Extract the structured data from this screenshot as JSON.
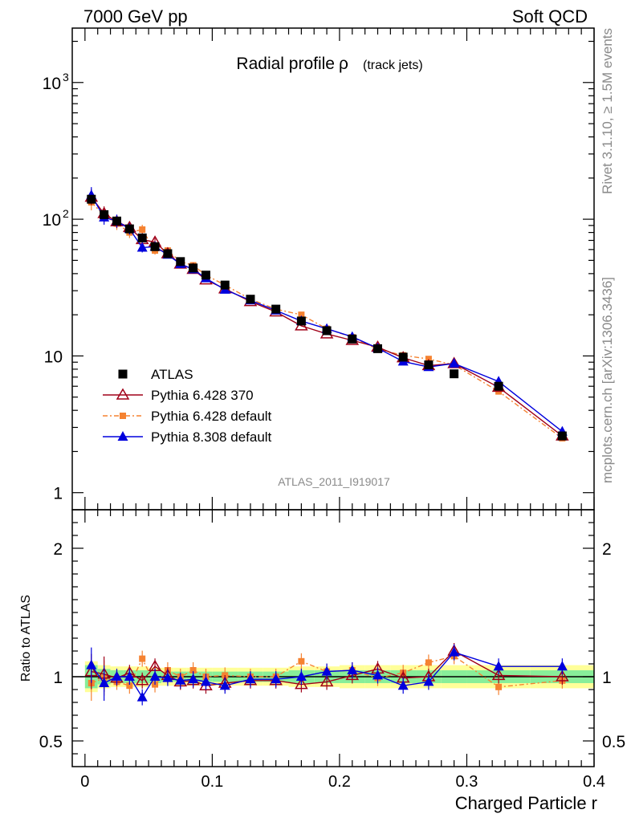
{
  "header": {
    "left": "7000 GeV pp",
    "right": "Soft QCD"
  },
  "side_labels": {
    "rivet": "Rivet 3.1.10, ≥ 1.5M events",
    "mcplots": "mcplots.cern.ch [arXiv:1306.3436]"
  },
  "chart_data": [
    {
      "type": "scatter",
      "title": "Radial profile",
      "title_symbol": "ρ",
      "title_sub": "(track jets)",
      "analysis_label": "ATLAS_2011_I919017",
      "yscale": "log",
      "ylim": [
        0.75,
        2500
      ],
      "xlim": [
        -0.01,
        0.4
      ],
      "y_ticks": [
        {
          "value": 1,
          "label": "1"
        },
        {
          "value": 10,
          "label": "10"
        },
        {
          "value": 100,
          "label": "10",
          "exp": "2"
        },
        {
          "value": 1000,
          "label": "10",
          "exp": "3"
        }
      ],
      "legend_position": "middle-left",
      "colors": {
        "atlas": "#000000",
        "p6_370": "#a00018",
        "p6_def": "#f58231",
        "p8_def": "#0000dd"
      },
      "x": [
        0.005,
        0.015,
        0.025,
        0.035,
        0.045,
        0.055,
        0.065,
        0.075,
        0.085,
        0.095,
        0.11,
        0.13,
        0.15,
        0.17,
        0.19,
        0.21,
        0.23,
        0.25,
        0.27,
        0.29,
        0.325,
        0.375
      ],
      "series": [
        {
          "name": "ATLAS",
          "key": "atlas",
          "values": [
            140,
            108,
            97,
            85,
            73,
            63,
            56,
            49,
            44,
            39,
            33,
            26,
            22,
            18,
            15.3,
            13.3,
            11.3,
            9.8,
            8.6,
            7.4,
            6.0,
            2.6
          ]
        },
        {
          "name": "Pythia 6.428 370",
          "key": "p6_370",
          "values": [
            145,
            110,
            96,
            87,
            71,
            68,
            56,
            47,
            43,
            36,
            31,
            25,
            21,
            16.6,
            14.5,
            13.0,
            11.6,
            9.7,
            8.5,
            8.8,
            5.9,
            2.6
          ]
        },
        {
          "name": "Pythia 6.428 default",
          "key": "p6_def",
          "values": [
            133,
            107,
            93,
            80,
            84,
            59,
            59,
            49,
            46,
            39,
            33,
            26,
            22,
            20,
            15.8,
            13.7,
            11.2,
            10.1,
            9.5,
            8.6,
            5.5,
            2.5
          ]
        },
        {
          "name": "Pythia 8.308 default",
          "key": "p8_def",
          "values": [
            150,
            103,
            97,
            85,
            62,
            63,
            55,
            47,
            43,
            37,
            30.5,
            25.5,
            21.5,
            18,
            15.8,
            13.8,
            11.4,
            9.1,
            8.3,
            8.8,
            6.5,
            2.8
          ]
        }
      ]
    },
    {
      "type": "scatter",
      "ylabel": "Ratio to ATLAS",
      "xlabel": "Charged Particle r",
      "ylim": [
        0.3,
        2.3
      ],
      "xlim": [
        -0.01,
        0.4
      ],
      "y_ticks": [
        {
          "value": 0.5,
          "label": "0.5"
        },
        {
          "value": 1,
          "label": "1"
        },
        {
          "value": 2,
          "label": "2"
        }
      ],
      "x_ticks": [
        {
          "value": 0,
          "label": "0"
        },
        {
          "value": 0.1,
          "label": "0.1"
        },
        {
          "value": 0.2,
          "label": "0.2"
        },
        {
          "value": 0.3,
          "label": "0.3"
        },
        {
          "value": 0.4,
          "label": "0.4"
        }
      ],
      "reference_line": 1,
      "x": [
        0.005,
        0.015,
        0.025,
        0.035,
        0.045,
        0.055,
        0.065,
        0.075,
        0.085,
        0.095,
        0.11,
        0.13,
        0.15,
        0.17,
        0.19,
        0.21,
        0.23,
        0.25,
        0.27,
        0.29,
        0.325,
        0.375
      ],
      "series": [
        {
          "name": "Pythia 6.428 370",
          "key": "p6_370",
          "values": [
            1.04,
            1.02,
            0.99,
            1.03,
            0.97,
            1.08,
            1.01,
            0.96,
            0.97,
            0.93,
            0.95,
            0.97,
            0.97,
            0.94,
            0.96,
            1.01,
            1.06,
            0.99,
            1.0,
            1.2,
            1.01,
            1.0
          ]
        },
        {
          "name": "Pythia 6.428 default",
          "key": "p6_def",
          "values": [
            0.95,
            0.99,
            0.96,
            0.93,
            1.14,
            0.94,
            1.05,
            1.0,
            1.05,
            1.0,
            1.01,
            1.0,
            1.0,
            1.12,
            1.04,
            1.05,
            0.99,
            1.03,
            1.11,
            1.16,
            0.92,
            0.97
          ]
        },
        {
          "name": "Pythia 8.308 default",
          "key": "p8_def",
          "values": [
            1.09,
            0.95,
            1.0,
            1.0,
            0.84,
            1.0,
            0.99,
            0.97,
            0.98,
            0.96,
            0.93,
            0.98,
            0.98,
            1.0,
            1.04,
            1.05,
            1.01,
            0.93,
            0.96,
            1.19,
            1.08,
            1.08
          ]
        }
      ],
      "bands": {
        "x_edges": [
          0.0,
          0.01,
          0.02,
          0.03,
          0.04,
          0.05,
          0.06,
          0.07,
          0.08,
          0.09,
          0.1,
          0.12,
          0.14,
          0.16,
          0.18,
          0.2,
          0.22,
          0.24,
          0.26,
          0.28,
          0.3,
          0.35,
          0.4
        ],
        "inner": [
          [
            0.91,
            1.09
          ],
          [
            0.94,
            1.06
          ],
          [
            0.95,
            1.05
          ],
          [
            0.95,
            1.05
          ],
          [
            0.95,
            1.05
          ],
          [
            0.95,
            1.05
          ],
          [
            0.96,
            1.04
          ],
          [
            0.96,
            1.04
          ],
          [
            0.96,
            1.04
          ],
          [
            0.96,
            1.04
          ],
          [
            0.96,
            1.04
          ],
          [
            0.96,
            1.04
          ],
          [
            0.96,
            1.04
          ],
          [
            0.95,
            1.05
          ],
          [
            0.95,
            1.05
          ],
          [
            0.95,
            1.05
          ],
          [
            0.95,
            1.05
          ],
          [
            0.95,
            1.05
          ],
          [
            0.95,
            1.05
          ],
          [
            0.95,
            1.05
          ],
          [
            0.95,
            1.05
          ],
          [
            0.95,
            1.05
          ]
        ],
        "outer": [
          [
            0.88,
            1.12
          ],
          [
            0.91,
            1.09
          ],
          [
            0.92,
            1.08
          ],
          [
            0.92,
            1.08
          ],
          [
            0.92,
            1.08
          ],
          [
            0.93,
            1.07
          ],
          [
            0.93,
            1.07
          ],
          [
            0.93,
            1.07
          ],
          [
            0.93,
            1.07
          ],
          [
            0.93,
            1.07
          ],
          [
            0.93,
            1.07
          ],
          [
            0.93,
            1.07
          ],
          [
            0.93,
            1.07
          ],
          [
            0.92,
            1.08
          ],
          [
            0.92,
            1.08
          ],
          [
            0.91,
            1.09
          ],
          [
            0.91,
            1.09
          ],
          [
            0.91,
            1.09
          ],
          [
            0.91,
            1.09
          ],
          [
            0.91,
            1.09
          ],
          [
            0.91,
            1.09
          ],
          [
            0.91,
            1.09
          ]
        ]
      }
    }
  ]
}
